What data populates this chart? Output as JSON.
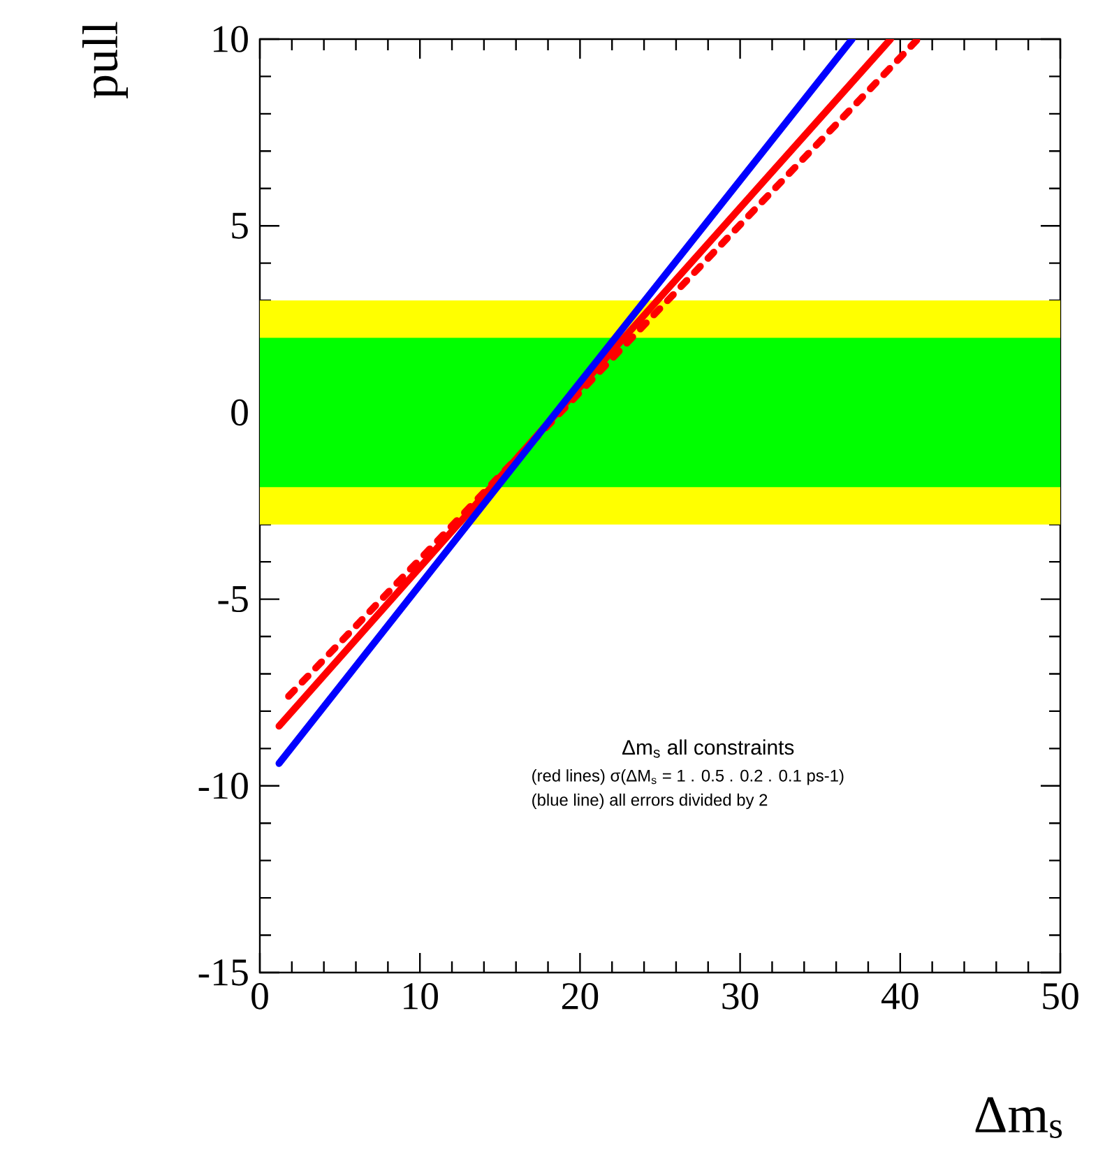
{
  "chart_data": {
    "type": "line",
    "xlabel": "Δm$_{s}$",
    "ylabel": "pull",
    "series": [
      {
        "color": "#ff0000",
        "x": [
          1.2,
          19.0,
          39.4
        ],
        "values": [
          -8.4,
          0.2,
          10
        ],
        "line_style": "solid"
      },
      {
        "color": "#ff0000",
        "x": [
          1.8,
          19.0,
          41.1
        ],
        "values": [
          -7.6,
          0.1,
          10
        ],
        "line_style": "dotted"
      },
      {
        "color": "#0000ff",
        "x": [
          1.2,
          18.5,
          37.0
        ],
        "values": [
          -9.4,
          0.0,
          10
        ],
        "line_style": "solid"
      }
    ],
    "bands": [
      {
        "axis": "y",
        "from": -3,
        "to": 3,
        "color": "#ffff00"
      },
      {
        "axis": "y",
        "from": -2,
        "to": 2,
        "color": "#00ff00"
      }
    ],
    "annotations": [
      "Δm$_{s}$ all constraints",
      "(red lines) σ(ΔM$_{s}$ = 1 . 0.5 . 0.2 . 0.1 ps-1)",
      "(blue line) all errors divided by 2"
    ],
    "xlim": [
      0,
      50
    ],
    "ylim": [
      -15,
      10
    ],
    "xticks": [
      0,
      10,
      20,
      30,
      40,
      50
    ],
    "yticks": [
      -15,
      -10,
      -5,
      0,
      5,
      10
    ],
    "grid": false,
    "marker": "none"
  }
}
